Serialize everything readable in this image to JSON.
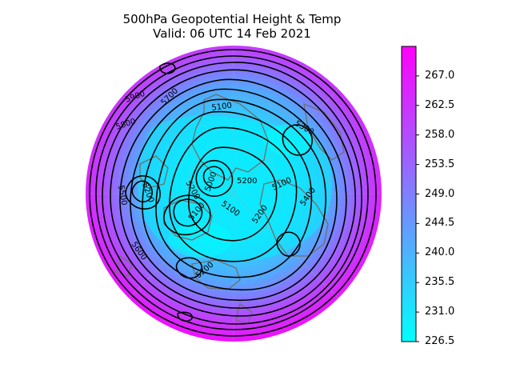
{
  "figure": {
    "title_line1": "500hPa Geopotential Height & Temp",
    "title_line2": "Valid: 06 UTC 14 Feb 2021"
  },
  "map": {
    "projection": "north-polar-stereographic",
    "fill_field": "temperature",
    "contour_field": "geopotential height",
    "contour_color": "#000000",
    "coastline_color": "#6e6e6e",
    "contour_labels": [
      "5900",
      "5700",
      "5800",
      "5500",
      "5100",
      "5300",
      "5200",
      "5000",
      "5200",
      "5100",
      "5400",
      "5100",
      "5100",
      "5200",
      "5200",
      "5600",
      "5200"
    ]
  },
  "colorbar": {
    "colormap": "cool",
    "low_color": "#00ffff",
    "high_color": "#ff00ff",
    "range": [
      226.5,
      271.5
    ],
    "ticks": [
      "267.0",
      "262.5",
      "258.0",
      "253.5",
      "249.0",
      "244.5",
      "240.0",
      "235.5",
      "231.0",
      "226.5"
    ]
  }
}
